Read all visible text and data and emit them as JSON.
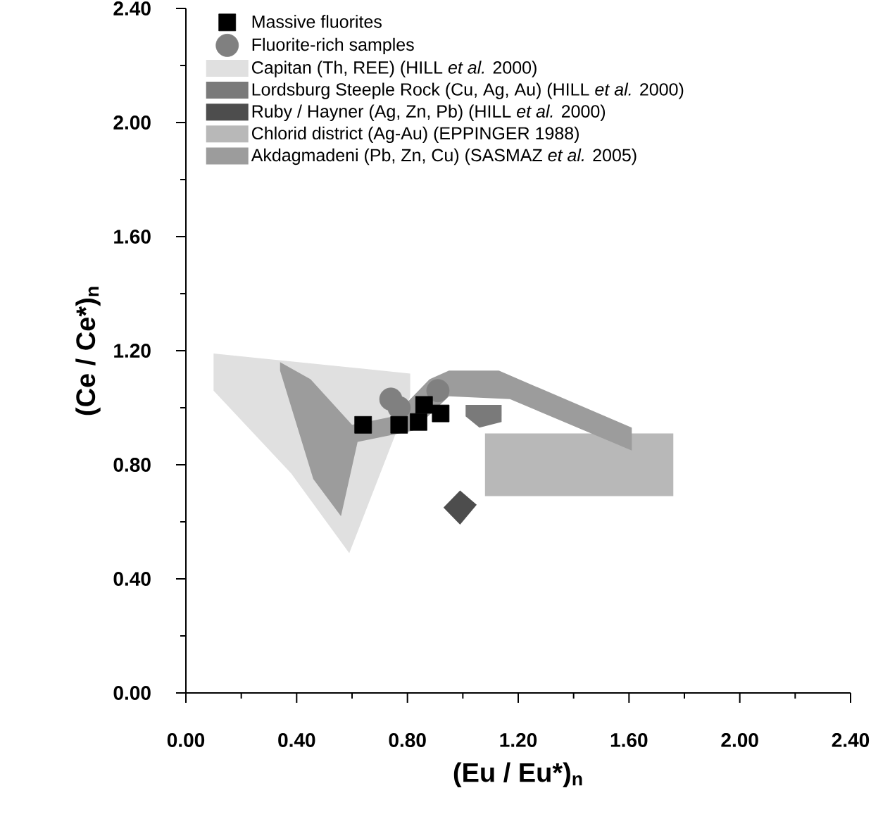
{
  "chart_data": {
    "type": "scatter",
    "xlabel": "(Eu / Eu*)$_{n}$",
    "ylabel": "(Ce / Ce*)$_{n}$",
    "xlim": [
      0,
      2.4
    ],
    "ylim": [
      0,
      2.4
    ],
    "xticks": [
      {
        "value": 0,
        "label": "0.00"
      },
      {
        "value": 0.4,
        "label": "0.40"
      },
      {
        "value": 0.8,
        "label": "0.80"
      },
      {
        "value": 1.2,
        "label": "1.20"
      },
      {
        "value": 1.6,
        "label": "1.60"
      },
      {
        "value": 2.0,
        "label": "2.00"
      },
      {
        "value": 2.4,
        "label": "2.40"
      }
    ],
    "yticks": [
      {
        "value": 0,
        "label": "0.00"
      },
      {
        "value": 0.4,
        "label": "0.40"
      },
      {
        "value": 0.8,
        "label": "0.80"
      },
      {
        "value": 1.2,
        "label": "1.20"
      },
      {
        "value": 1.6,
        "label": "1.60"
      },
      {
        "value": 2.0,
        "label": "2.00"
      },
      {
        "value": 2.4,
        "label": "2.40"
      }
    ],
    "legend": "top left",
    "series": [
      {
        "name": "Massive fluorites",
        "marker": "square",
        "color": "#000000",
        "x": [
          0.64,
          0.77,
          0.84,
          0.86,
          0.92
        ],
        "values": [
          0.94,
          0.94,
          0.95,
          1.01,
          0.98
        ]
      },
      {
        "name": "Fluorite-rich samples",
        "marker": "circle",
        "color": "#808080",
        "x": [
          0.74,
          0.77,
          0.91
        ],
        "values": [
          1.03,
          1.0,
          1.06
        ]
      },
      {
        "name": "Capitan (Th, REE) (HILL *et al.* 2000)",
        "type": "area",
        "color": "#e0e0e0",
        "x": [
          0.1,
          0.81,
          0.81,
          0.59,
          0.38,
          0.1
        ],
        "values": [
          1.19,
          1.12,
          1.04,
          0.49,
          0.77,
          1.06
        ]
      },
      {
        "name": "Lordsburg Steeple Rock (Cu, Ag, Au) (HILL *et al.* 2000)",
        "type": "area",
        "color": "#7a7a7a",
        "x": [
          1.01,
          1.14,
          1.14,
          1.06,
          1.01
        ],
        "values": [
          1.01,
          1.01,
          0.95,
          0.93,
          0.97
        ]
      },
      {
        "name": "Ruby / Hayner (Ag, Zn, Pb) (HILL *et al.* 2000)",
        "type": "area",
        "color": "#4d4d4d",
        "x": [
          0.99,
          1.05,
          0.99,
          0.93
        ],
        "values": [
          0.71,
          0.66,
          0.59,
          0.65
        ]
      },
      {
        "name": "Chlorid district (Ag-Au) (EPPINGER 1988)",
        "type": "area",
        "color": "#b8b8b8",
        "x": [
          1.08,
          1.76,
          1.76,
          1.08
        ],
        "values": [
          0.91,
          0.91,
          0.69,
          0.69
        ]
      },
      {
        "name": "Akdagmadeni (Pb, Zn, Cu) (SASMAZ *et al.* 2005)",
        "type": "area",
        "color": "#9c9c9c",
        "x": [
          0.34,
          0.45,
          0.6,
          0.75,
          0.88,
          0.95,
          1.13,
          1.61,
          1.61,
          1.17,
          0.95,
          0.82,
          0.62,
          0.56,
          0.46,
          0.34
        ],
        "values": [
          1.16,
          1.1,
          0.94,
          0.97,
          1.1,
          1.13,
          1.13,
          0.93,
          0.85,
          1.03,
          1.04,
          0.92,
          0.88,
          0.62,
          0.75,
          1.13
        ]
      }
    ]
  }
}
